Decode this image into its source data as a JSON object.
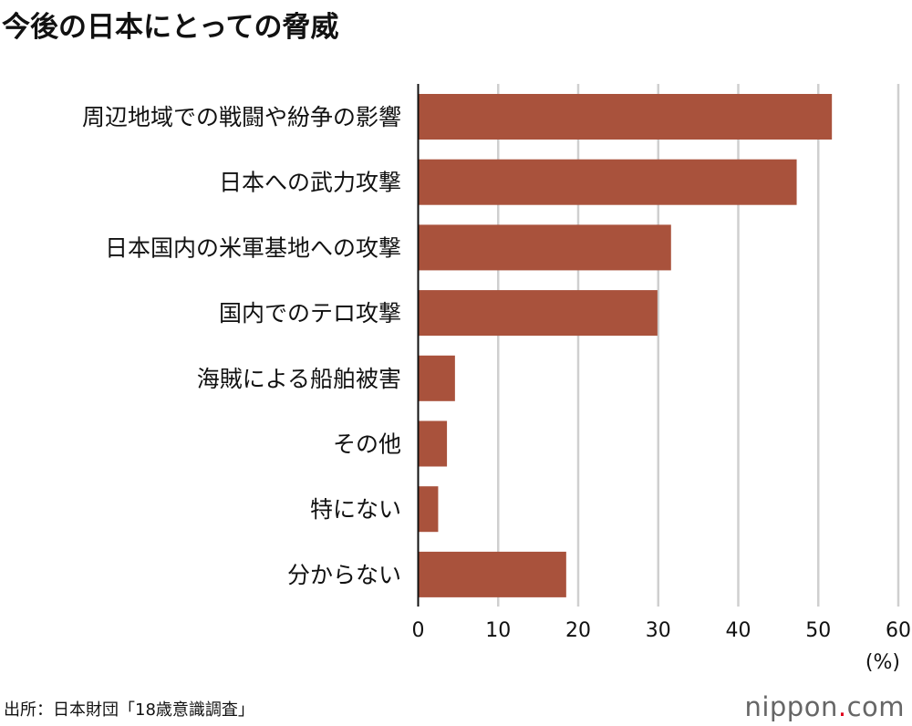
{
  "chart_data": {
    "type": "bar",
    "orientation": "horizontal",
    "title": "今後の日本にとっての脅威",
    "categories": [
      "周辺地域での戦闘や紛争の影響",
      "日本への武力攻撃",
      "日本国内の米軍基地への攻撃",
      "国内でのテロ攻撃",
      "海賊による船舶被害",
      "その他",
      "特にない",
      "分からない"
    ],
    "values": [
      51.7,
      47.3,
      31.6,
      29.9,
      4.6,
      3.6,
      2.5,
      18.5
    ],
    "xlim": [
      0,
      60
    ],
    "xticks": [
      0,
      10,
      20,
      30,
      40,
      50,
      60
    ],
    "xlabel": "(%)",
    "grid": true,
    "bar_color": "#a9523c"
  },
  "source": "出所：日本財団「18歳意識調査」",
  "logo": {
    "text": "nippon",
    "dot": ".",
    "suffix": "com"
  }
}
